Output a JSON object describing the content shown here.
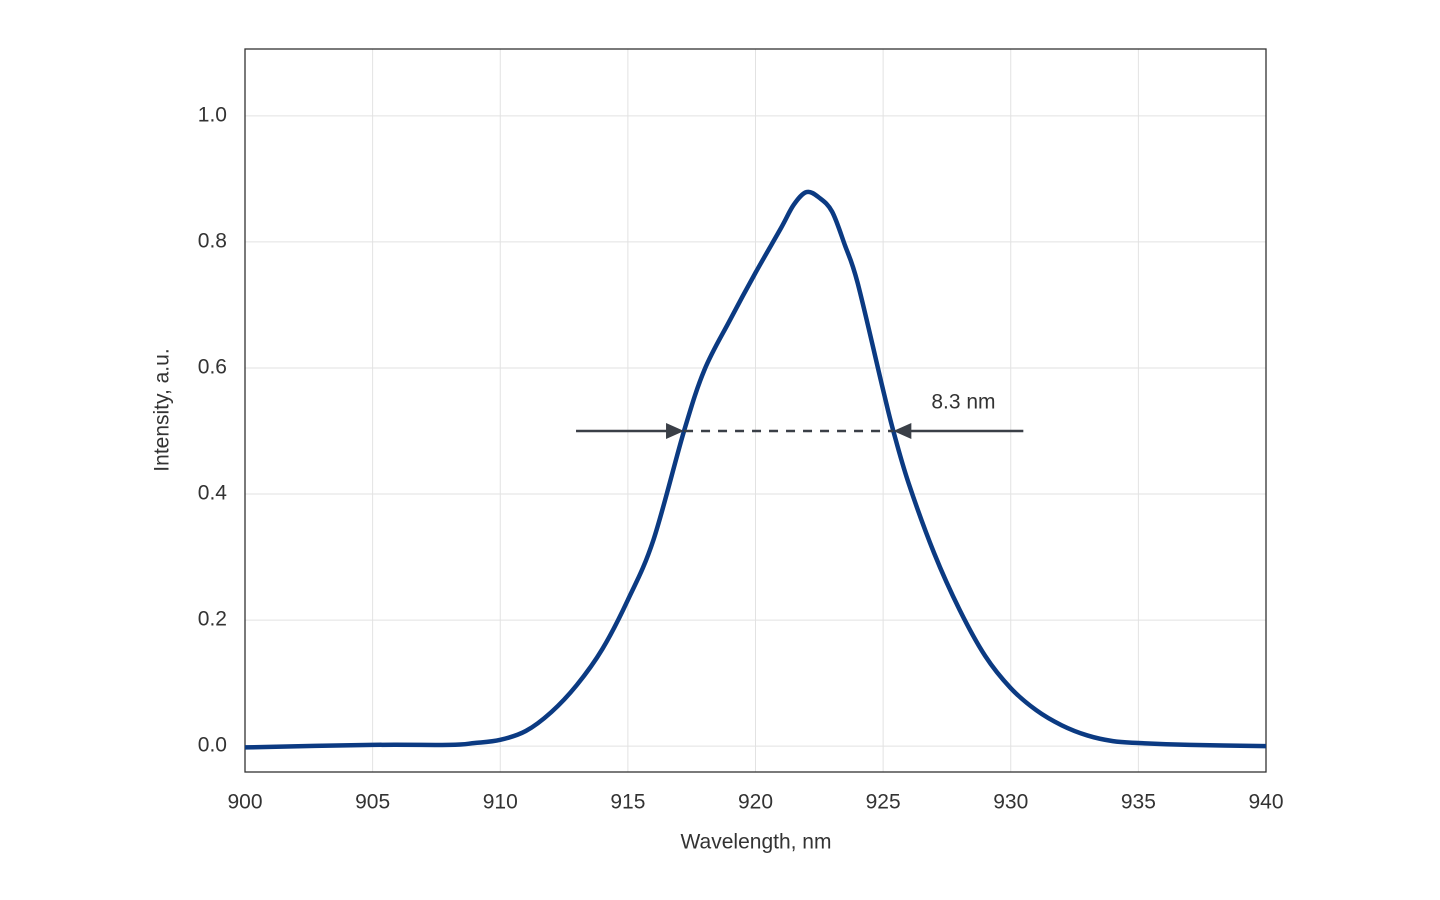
{
  "chart_data": {
    "type": "line",
    "x_label": "Wavelength, nm",
    "y_label": "Intensity, a.u.",
    "x": [
      900,
      905,
      908,
      909,
      910,
      911,
      912,
      913,
      914,
      915,
      916,
      917.2,
      918,
      919,
      920,
      921,
      921.5,
      922,
      922.5,
      923,
      923.5,
      924,
      925,
      925.4,
      926,
      927,
      928,
      929,
      930,
      931,
      932,
      933,
      934,
      935,
      937,
      940
    ],
    "series": [
      {
        "color": "#0b3a82",
        "values": [
          -0.002,
          0.002,
          0.002,
          0.005,
          0.01,
          0.024,
          0.054,
          0.097,
          0.154,
          0.232,
          0.327,
          0.5,
          0.597,
          0.676,
          0.751,
          0.822,
          0.859,
          0.879,
          0.87,
          0.848,
          0.795,
          0.735,
          0.565,
          0.5,
          0.417,
          0.306,
          0.216,
          0.143,
          0.092,
          0.057,
          0.033,
          0.017,
          0.008,
          0.005,
          0.002,
          0.0
        ]
      }
    ],
    "xlim": [
      900,
      940
    ],
    "ylim": [
      -0.041,
      1.106
    ],
    "xticks": [
      900,
      905,
      910,
      915,
      920,
      925,
      930,
      935,
      940
    ],
    "yticks": [
      {
        "value": 0,
        "label": "0.0"
      },
      0.2,
      0.4,
      0.6,
      0.8,
      {
        "value": 1,
        "label": "1.0"
      }
    ],
    "grid": true,
    "annotation": {
      "text": "8.3 nm",
      "x": [
        917.2,
        925.4
      ],
      "y": 0.5
    }
  }
}
